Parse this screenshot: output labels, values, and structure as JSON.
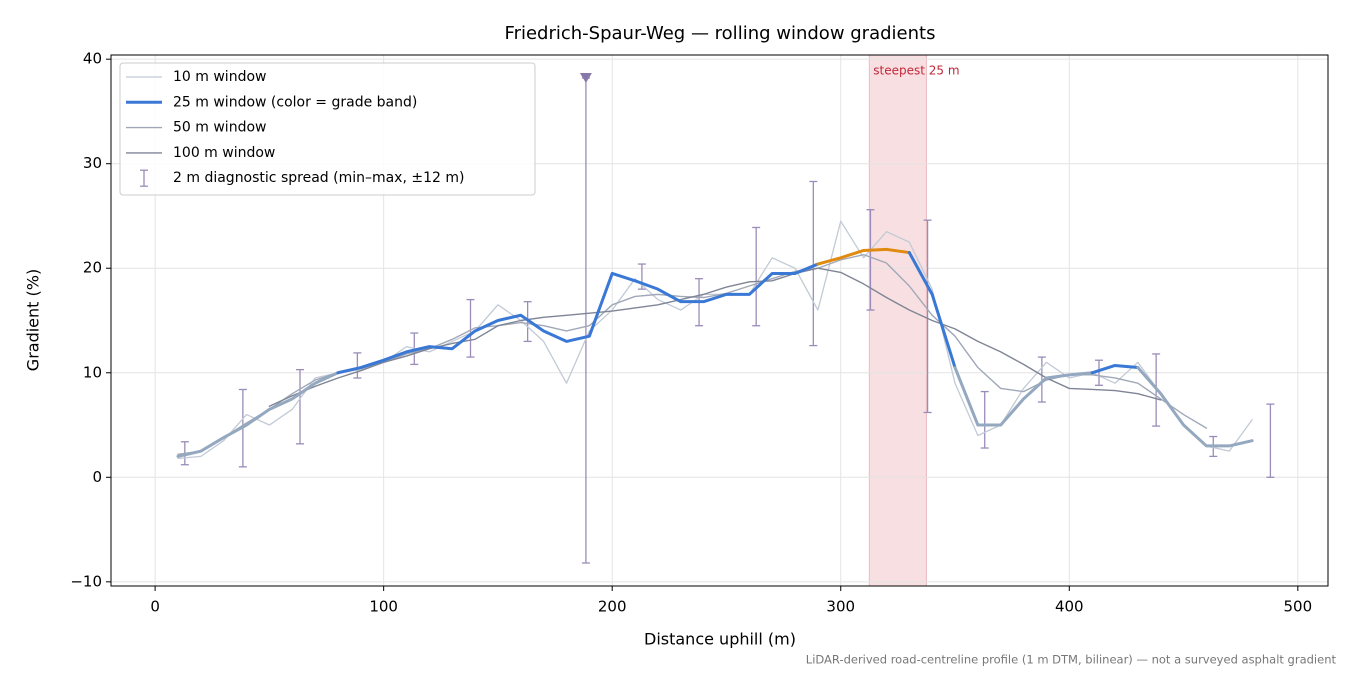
{
  "chart_data": {
    "type": "line",
    "title": "Friedrich-Spaur-Weg — rolling window gradients",
    "x_label": "Distance uphill (m)",
    "y_label": "Gradient (%)",
    "footnote": "LiDAR-derived road-centreline profile (1 m DTM, bilinear) — not a surveyed asphalt gradient",
    "xlim": [
      -19.3,
      513.2
    ],
    "ylim": [
      -10.4,
      40.4
    ],
    "xticks": [
      0,
      100,
      200,
      300,
      400,
      500
    ],
    "yticks": [
      {
        "value": -10,
        "label": "−10"
      },
      0,
      10,
      20,
      30,
      40
    ],
    "grid": true,
    "legend": "upper left",
    "x": [
      0,
      10,
      20,
      30,
      40,
      50,
      60,
      70,
      80,
      90,
      100,
      110,
      120,
      130,
      140,
      150,
      160,
      170,
      180,
      190,
      200,
      210,
      220,
      230,
      240,
      250,
      260,
      270,
      280,
      290,
      300,
      310,
      320,
      330,
      340,
      350,
      360,
      370,
      380,
      390,
      400,
      410,
      420,
      430,
      440,
      450,
      460,
      470,
      480,
      490
    ],
    "series": [
      {
        "name": "10 m window",
        "color": "#c2cad6",
        "width": 1.3,
        "values": [
          null,
          1.8,
          2.0,
          3.5,
          6.0,
          5.0,
          6.5,
          9.5,
          10.0,
          10.3,
          11.0,
          12.5,
          12.0,
          13.0,
          14.0,
          16.5,
          15.0,
          13.0,
          9.0,
          14.0,
          16.0,
          19.0,
          17.0,
          16.0,
          17.5,
          17.5,
          17.5,
          21.0,
          20.0,
          16.0,
          24.5,
          21.0,
          23.5,
          22.5,
          18.0,
          9.0,
          4.0,
          5.0,
          8.5,
          11.0,
          9.5,
          10.0,
          9.0,
          11.0,
          8.0,
          5.0,
          3.0,
          2.5,
          5.5,
          null
        ]
      },
      {
        "name": "50 m window",
        "color": "#a0a8b8",
        "width": 1.4,
        "values": [
          null,
          2.2,
          2.5,
          3.8,
          5.2,
          6.5,
          8.0,
          9.3,
          10.0,
          10.4,
          11.0,
          11.8,
          12.3,
          13.2,
          14.3,
          14.5,
          14.8,
          14.5,
          14.0,
          14.5,
          16.5,
          17.3,
          17.5,
          17.3,
          17.2,
          17.6,
          18.3,
          19.0,
          19.7,
          20.0,
          20.8,
          21.3,
          20.5,
          18.3,
          15.5,
          13.5,
          10.5,
          8.5,
          8.2,
          9.3,
          9.8,
          9.8,
          9.5,
          9.0,
          7.5,
          6.0,
          4.7,
          null,
          null,
          null
        ]
      },
      {
        "name": "100 m window",
        "color": "#7f8596",
        "width": 1.4,
        "values": [
          null,
          null,
          null,
          null,
          null,
          6.8,
          7.8,
          8.7,
          9.5,
          10.2,
          11.0,
          11.6,
          12.3,
          12.8,
          13.2,
          14.5,
          15.0,
          15.3,
          15.5,
          15.7,
          15.9,
          16.2,
          16.5,
          17.0,
          17.5,
          18.2,
          18.7,
          18.8,
          19.5,
          20.0,
          19.6,
          18.5,
          17.2,
          16.0,
          15.0,
          14.2,
          13.0,
          12.0,
          10.8,
          9.5,
          8.5,
          8.4,
          8.3,
          8.0,
          7.4,
          null,
          null,
          null,
          null,
          null
        ]
      },
      {
        "name": "25 m window (color = grade band)",
        "color": "#3a78d6",
        "width": 3,
        "thresholds": [
          10,
          20
        ],
        "band_colors": [
          "#94a8c0",
          "#3a78d6",
          "#e08a10"
        ],
        "values": [
          null,
          2.0,
          2.5,
          3.8,
          5.0,
          6.5,
          7.5,
          9.0,
          10.0,
          10.5,
          11.2,
          12.0,
          12.5,
          12.3,
          14.0,
          15.0,
          15.5,
          14.0,
          13.0,
          13.5,
          19.5,
          18.8,
          18.0,
          16.8,
          16.8,
          17.5,
          17.5,
          19.5,
          19.5,
          20.4,
          21.0,
          21.7,
          21.8,
          21.5,
          17.5,
          10.5,
          5.0,
          5.0,
          7.5,
          9.5,
          9.8,
          10.0,
          10.7,
          10.5,
          8.0,
          5.0,
          3.0,
          3.0,
          3.5,
          null
        ]
      }
    ],
    "spread": {
      "name": "2 m diagnostic spread (min–max, ±12 m)",
      "color": "#9a8cb8",
      "x": [
        13,
        38.4,
        63.4,
        88.5,
        113.4,
        138,
        163,
        188.5,
        213,
        238,
        263,
        288,
        313,
        338,
        363,
        388,
        413,
        438,
        463,
        488
      ],
      "low": [
        1.2,
        1.0,
        3.2,
        9.5,
        10.8,
        11.5,
        13.0,
        -8.2,
        18.0,
        14.5,
        14.5,
        12.6,
        16.0,
        6.2,
        2.8,
        7.2,
        8.8,
        4.9,
        2.0,
        0.0
      ],
      "high": [
        3.4,
        8.4,
        10.3,
        11.9,
        13.8,
        17.0,
        16.8,
        38.2,
        20.4,
        19.0,
        23.9,
        28.3,
        25.6,
        24.6,
        8.2,
        11.5,
        11.2,
        11.8,
        3.9,
        7.0
      ]
    },
    "peak_marker": {
      "x": 188.5,
      "y": 38.2,
      "color": "#8878a8"
    },
    "highlight": {
      "label": "steepest 25 m",
      "x0": 312.5,
      "x1": 337.5,
      "color": "#f3c9cd",
      "text_color": "#c0283a"
    }
  }
}
